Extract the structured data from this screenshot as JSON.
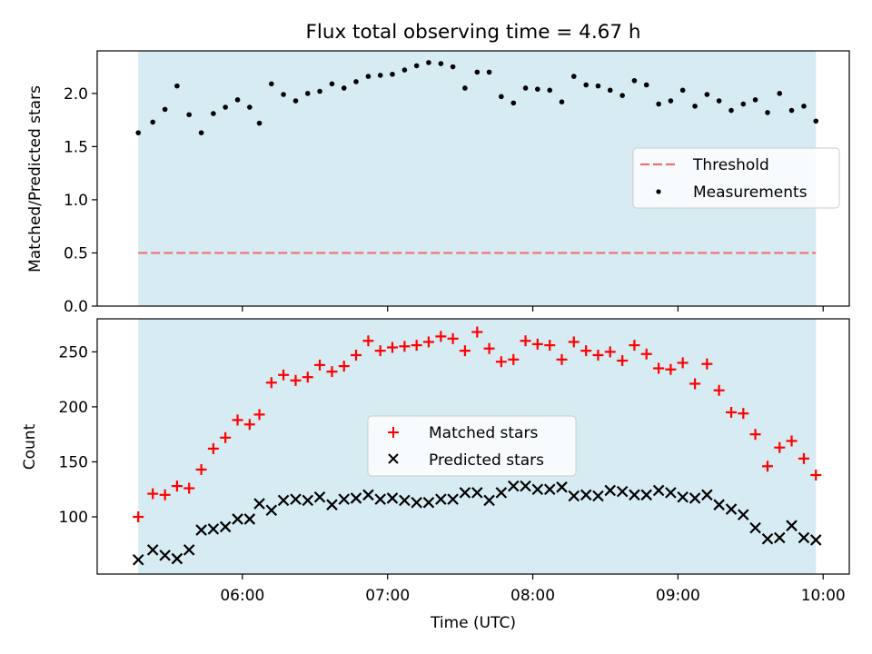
{
  "figure": {
    "title": "Flux total observing time = 4.67 h"
  },
  "chart_data": [
    {
      "type": "scatter",
      "panel": "top",
      "title": "Flux total observing time = 4.67 h",
      "xlabel": "",
      "ylabel": "Matched/Predicted stars",
      "xlim_hours": [
        5.0,
        10.18
      ],
      "ylim": [
        0.0,
        2.4
      ],
      "yticks": [
        0.0,
        0.5,
        1.0,
        1.5,
        2.0
      ],
      "ytick_labels": [
        "0.0",
        "0.5",
        "1.0",
        "1.5",
        "2.0"
      ],
      "grid": false,
      "legend": "center-right",
      "shaded_span_hours": [
        5.283,
        9.95
      ],
      "threshold": {
        "name": "Threshold",
        "value": 0.5,
        "x_range_hours": [
          5.283,
          9.95
        ],
        "color": "#f07070",
        "style": "dashed"
      },
      "series": [
        {
          "name": "Measurements",
          "marker": "dot",
          "color": "#000000",
          "x_hours": [
            5.283,
            5.383,
            5.467,
            5.55,
            5.633,
            5.717,
            5.8,
            5.883,
            5.967,
            6.05,
            6.117,
            6.2,
            6.283,
            6.367,
            6.45,
            6.533,
            6.617,
            6.7,
            6.783,
            6.867,
            6.95,
            7.033,
            7.117,
            7.2,
            7.283,
            7.367,
            7.45,
            7.533,
            7.617,
            7.7,
            7.783,
            7.867,
            7.95,
            8.033,
            8.117,
            8.2,
            8.283,
            8.367,
            8.45,
            8.533,
            8.617,
            8.7,
            8.783,
            8.867,
            8.95,
            9.033,
            9.117,
            9.2,
            9.283,
            9.367,
            9.45,
            9.533,
            9.617,
            9.7,
            9.783,
            9.867,
            9.95
          ],
          "y": [
            1.63,
            1.73,
            1.85,
            2.07,
            1.8,
            1.63,
            1.81,
            1.87,
            1.94,
            1.87,
            1.72,
            2.09,
            1.99,
            1.93,
            2.0,
            2.02,
            2.09,
            2.05,
            2.11,
            2.16,
            2.17,
            2.18,
            2.22,
            2.26,
            2.29,
            2.28,
            2.25,
            2.05,
            2.2,
            2.2,
            1.97,
            1.91,
            2.05,
            2.04,
            2.03,
            1.92,
            2.16,
            2.08,
            2.07,
            2.03,
            1.98,
            2.12,
            2.08,
            1.9,
            1.93,
            2.03,
            1.88,
            1.99,
            1.93,
            1.84,
            1.9,
            1.94,
            1.82,
            2.0,
            1.84,
            1.88,
            1.74
          ]
        }
      ]
    },
    {
      "type": "scatter",
      "panel": "bottom",
      "title": "",
      "xlabel": "Time (UTC)",
      "ylabel": "Count",
      "xlim_hours": [
        5.0,
        10.18
      ],
      "ylim": [
        48,
        280
      ],
      "yticks": [
        100,
        150,
        200,
        250
      ],
      "ytick_labels": [
        "100",
        "150",
        "200",
        "250"
      ],
      "xticks_hours": [
        6,
        7,
        8,
        9,
        10
      ],
      "xtick_labels": [
        "06:00",
        "07:00",
        "08:00",
        "09:00",
        "10:00"
      ],
      "grid": false,
      "legend": "center",
      "shaded_span_hours": [
        5.283,
        9.95
      ],
      "x_hours": [
        5.283,
        5.383,
        5.467,
        5.55,
        5.633,
        5.717,
        5.8,
        5.883,
        5.967,
        6.05,
        6.117,
        6.2,
        6.283,
        6.367,
        6.45,
        6.533,
        6.617,
        6.7,
        6.783,
        6.867,
        6.95,
        7.033,
        7.117,
        7.2,
        7.283,
        7.367,
        7.45,
        7.533,
        7.617,
        7.7,
        7.783,
        7.867,
        7.95,
        8.033,
        8.117,
        8.2,
        8.283,
        8.367,
        8.45,
        8.533,
        8.617,
        8.7,
        8.783,
        8.867,
        8.95,
        9.033,
        9.117,
        9.2,
        9.283,
        9.367,
        9.45,
        9.533,
        9.617,
        9.7,
        9.783,
        9.867,
        9.95
      ],
      "series": [
        {
          "name": "Matched stars",
          "marker": "plus",
          "color": "#ff0000",
          "values": [
            100,
            121,
            120,
            128,
            126,
            143,
            162,
            172,
            188,
            184,
            193,
            222,
            229,
            224,
            227,
            238,
            232,
            237,
            247,
            260,
            251,
            254,
            255,
            256,
            259,
            264,
            262,
            251,
            268,
            253,
            241,
            243,
            260,
            257,
            256,
            243,
            259,
            251,
            247,
            250,
            242,
            256,
            248,
            235,
            234,
            240,
            221,
            239,
            215,
            195,
            194,
            175,
            146,
            163,
            169,
            153,
            138
          ]
        },
        {
          "name": "Predicted stars",
          "marker": "x",
          "color": "#000000",
          "values": [
            61,
            70,
            65,
            62,
            70,
            88,
            89,
            91,
            98,
            98,
            112,
            106,
            115,
            116,
            115,
            118,
            111,
            116,
            117,
            120,
            116,
            117,
            115,
            113,
            113,
            116,
            116,
            122,
            122,
            115,
            122,
            128,
            128,
            125,
            125,
            127,
            119,
            120,
            119,
            124,
            123,
            120,
            120,
            124,
            122,
            118,
            117,
            120,
            111,
            107,
            102,
            90,
            80,
            81,
            92,
            81,
            79
          ]
        }
      ]
    }
  ]
}
